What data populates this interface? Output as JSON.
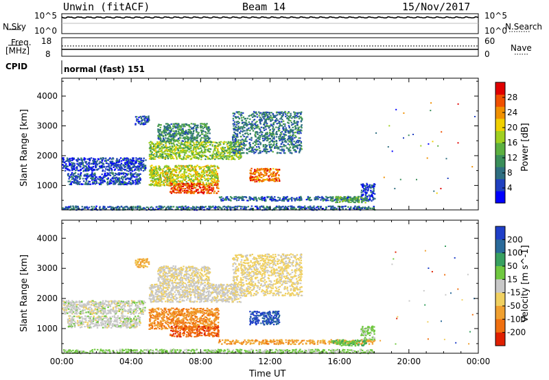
{
  "header": {
    "title_left": "Unwin (fitACF)",
    "title_center": "Beam 14",
    "title_right": "15/Nov/2017"
  },
  "strips": {
    "nsky_label": "N.Sky",
    "nsky_ticks": [
      "10^5",
      "10^0"
    ],
    "nsearch_label": "N.Search",
    "nsearch_ticks": [
      "10^5",
      "10^0"
    ],
    "freq_label": "Freq.",
    "freq_unit": "[MHz]",
    "freq_ticks": [
      "18",
      "8"
    ],
    "nave_label": "Nave",
    "nave_ticks": [
      "60",
      "0"
    ],
    "cpid_label": "CPID",
    "cpid_text": "normal (fast) 151"
  },
  "chart_data": [
    {
      "type": "heatmap",
      "name": "power-panel",
      "ylabel": "Slant Range [km]",
      "xlabel": "",
      "x_ticks": [
        "00:00",
        "04:00",
        "08:00",
        "12:00",
        "16:00",
        "20:00",
        "00:00"
      ],
      "xlim_hours": [
        0,
        24
      ],
      "ylim_km": [
        180,
        4600
      ],
      "y_ticks": [
        1000,
        2000,
        3000,
        4000
      ],
      "colorbar_label": "Power [dB]",
      "colorbar_ticks": [
        "4",
        "8",
        "12",
        "16",
        "20",
        "24",
        "28"
      ],
      "colorbar_range": [
        0,
        30
      ],
      "colors": [
        "#0000ff",
        "#2040c0",
        "#2e6e80",
        "#3a8e5a",
        "#5cb040",
        "#a0d020",
        "#f0d000",
        "#f09000",
        "#f05000",
        "#e00000"
      ],
      "features": [
        {
          "t0": 0.0,
          "t1": 4.8,
          "r0": 1500,
          "r1": 1950,
          "level": 0.12
        },
        {
          "t0": 0.3,
          "t1": 4.5,
          "r0": 1050,
          "r1": 1450,
          "level": 0.15
        },
        {
          "t0": 0.0,
          "t1": 18.0,
          "r0": 200,
          "r1": 330,
          "level": 0.2
        },
        {
          "t0": 4.2,
          "t1": 5.0,
          "r0": 3050,
          "r1": 3350,
          "level": 0.15
        },
        {
          "t0": 5.0,
          "t1": 9.0,
          "r0": 1000,
          "r1": 1700,
          "level": 0.6
        },
        {
          "t0": 6.2,
          "t1": 9.0,
          "r0": 750,
          "r1": 1100,
          "level": 0.9
        },
        {
          "t0": 5.0,
          "t1": 10.3,
          "r0": 1900,
          "r1": 2500,
          "level": 0.5
        },
        {
          "t0": 5.5,
          "t1": 8.5,
          "r0": 2500,
          "r1": 3100,
          "level": 0.3
        },
        {
          "t0": 9.8,
          "t1": 13.8,
          "r0": 2100,
          "r1": 3500,
          "level": 0.25
        },
        {
          "t0": 10.8,
          "t1": 12.5,
          "r0": 1150,
          "r1": 1600,
          "level": 0.85
        },
        {
          "t0": 9.0,
          "t1": 18.0,
          "r0": 500,
          "r1": 650,
          "level": 0.2
        },
        {
          "t0": 15.5,
          "t1": 17.5,
          "r0": 450,
          "r1": 650,
          "level": 0.4
        },
        {
          "t0": 17.2,
          "t1": 18.0,
          "r0": 650,
          "r1": 1100,
          "level": 0.1
        }
      ]
    },
    {
      "type": "heatmap",
      "name": "velocity-panel",
      "ylabel": "Slant Range [km]",
      "xlabel": "Time UT",
      "x_ticks": [
        "00:00",
        "04:00",
        "08:00",
        "12:00",
        "16:00",
        "20:00",
        "00:00"
      ],
      "xlim_hours": [
        0,
        24
      ],
      "ylim_km": [
        180,
        4600
      ],
      "y_ticks": [
        1000,
        2000,
        3000,
        4000
      ],
      "colorbar_label": "Velocity [m s^-1]",
      "colorbar_ticks": [
        "200",
        "100",
        "50",
        "15",
        "-15",
        "-50",
        "-100",
        "-200"
      ],
      "colorbar_range": [
        -250,
        250
      ],
      "colors": [
        "#1f3fc8",
        "#2a6a9a",
        "#38a060",
        "#70c840",
        "#c8c8c8",
        "#f0d060",
        "#f0a030",
        "#f07010",
        "#e02000"
      ],
      "features": [
        {
          "t0": 0.0,
          "t1": 4.8,
          "r0": 1500,
          "r1": 1950,
          "level": 0.0
        },
        {
          "t0": 0.3,
          "t1": 4.5,
          "r0": 1050,
          "r1": 1450,
          "level": 0.0
        },
        {
          "t0": 0.0,
          "t1": 18.0,
          "r0": 200,
          "r1": 330,
          "level": 0.2
        },
        {
          "t0": 4.2,
          "t1": 5.0,
          "r0": 3050,
          "r1": 3350,
          "level": -0.4
        },
        {
          "t0": 5.0,
          "t1": 9.0,
          "r0": 1000,
          "r1": 1700,
          "level": -0.6
        },
        {
          "t0": 6.2,
          "t1": 9.0,
          "r0": 750,
          "r1": 1100,
          "level": -0.8
        },
        {
          "t0": 5.0,
          "t1": 10.3,
          "r0": 1900,
          "r1": 2500,
          "level": -0.05
        },
        {
          "t0": 5.5,
          "t1": 8.5,
          "r0": 2500,
          "r1": 3100,
          "level": -0.1
        },
        {
          "t0": 9.8,
          "t1": 13.8,
          "r0": 2100,
          "r1": 3500,
          "level": -0.2
        },
        {
          "t0": 10.8,
          "t1": 12.5,
          "r0": 1150,
          "r1": 1600,
          "level": 0.9
        },
        {
          "t0": 9.0,
          "t1": 18.0,
          "r0": 500,
          "r1": 650,
          "level": -0.5
        },
        {
          "t0": 15.5,
          "t1": 17.5,
          "r0": 450,
          "r1": 650,
          "level": 0.3
        },
        {
          "t0": 17.2,
          "t1": 18.0,
          "r0": 650,
          "r1": 1100,
          "level": 0.2
        }
      ]
    }
  ]
}
